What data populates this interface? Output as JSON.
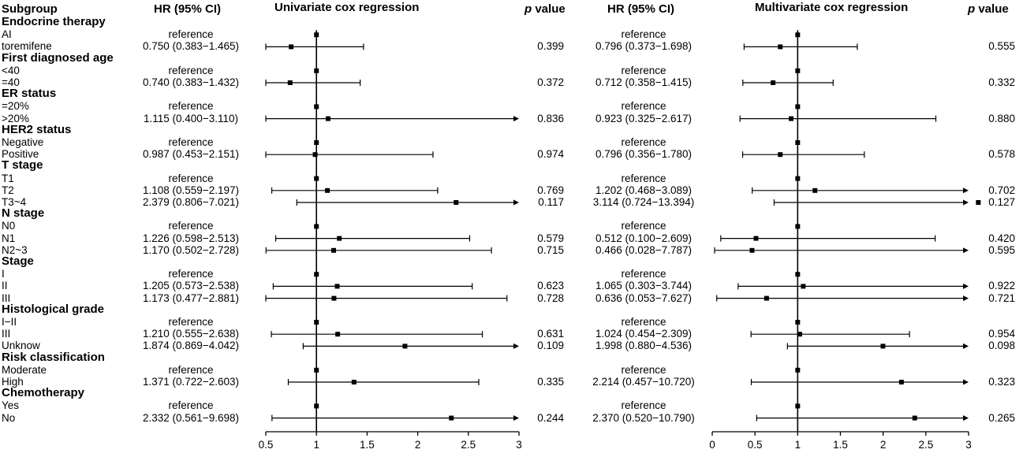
{
  "headers": {
    "subgroup": "Subgroup",
    "hr_uni": "HR (95% CI)",
    "title_uni": "Univariate cox regression",
    "p_uni_italic": "p",
    "p_uni_rest": " value",
    "hr_multi": "HR (95% CI)",
    "title_multi": "Multivariate cox regression",
    "p_multi_italic": "p",
    "p_multi_rest": " value"
  },
  "chart_data": [
    {
      "type": "forest",
      "title": "Univariate cox regression",
      "xlim": [
        0.5,
        3
      ],
      "xticks": [
        "0.5",
        "1",
        "1.5",
        "2",
        "2.5",
        "3"
      ],
      "reference_line": 1,
      "rows": [
        {
          "kind": "group",
          "label": "Endocrine therapy"
        },
        {
          "kind": "ref",
          "label": "AI",
          "hr_text": "reference",
          "p": ""
        },
        {
          "kind": "est",
          "label": "toremifene",
          "hr_text": "0.750 (0.383−1.465)",
          "hr": 0.75,
          "lo": 0.383,
          "hi": 1.465,
          "p": "0.399"
        },
        {
          "kind": "group",
          "label": "First diagnosed age"
        },
        {
          "kind": "ref",
          "label": "<40",
          "hr_text": "reference",
          "p": ""
        },
        {
          "kind": "est",
          "label": "=40",
          "hr_text": "0.740 (0.383−1.432)",
          "hr": 0.74,
          "lo": 0.383,
          "hi": 1.432,
          "p": "0.372"
        },
        {
          "kind": "group",
          "label": "ER status"
        },
        {
          "kind": "ref",
          "label": "=20%",
          "hr_text": "reference",
          "p": ""
        },
        {
          "kind": "est",
          "label": ">20%",
          "hr_text": "1.115 (0.400−3.110)",
          "hr": 1.115,
          "lo": 0.4,
          "hi": 3.11,
          "p": "0.836"
        },
        {
          "kind": "group",
          "label": "HER2 status"
        },
        {
          "kind": "ref",
          "label": "Negative",
          "hr_text": "reference",
          "p": ""
        },
        {
          "kind": "est",
          "label": "Positive",
          "hr_text": "0.987 (0.453−2.151)",
          "hr": 0.987,
          "lo": 0.453,
          "hi": 2.151,
          "p": "0.974"
        },
        {
          "kind": "group",
          "label": "T stage"
        },
        {
          "kind": "ref",
          "label": "T1",
          "hr_text": "reference",
          "p": ""
        },
        {
          "kind": "est",
          "label": "T2",
          "hr_text": "1.108 (0.559−2.197)",
          "hr": 1.108,
          "lo": 0.559,
          "hi": 2.197,
          "p": "0.769"
        },
        {
          "kind": "est",
          "label": "T3~4",
          "hr_text": "2.379 (0.806−7.021)",
          "hr": 2.379,
          "lo": 0.806,
          "hi": 7.021,
          "p": "0.117"
        },
        {
          "kind": "group",
          "label": "N stage"
        },
        {
          "kind": "ref",
          "label": "N0",
          "hr_text": "reference",
          "p": ""
        },
        {
          "kind": "est",
          "label": "N1",
          "hr_text": "1.226 (0.598−2.513)",
          "hr": 1.226,
          "lo": 0.598,
          "hi": 2.513,
          "p": "0.579"
        },
        {
          "kind": "est",
          "label": "N2~3",
          "hr_text": "1.170 (0.502−2.728)",
          "hr": 1.17,
          "lo": 0.502,
          "hi": 2.728,
          "p": "0.715"
        },
        {
          "kind": "group",
          "label": "Stage"
        },
        {
          "kind": "ref",
          "label": "I",
          "hr_text": "reference",
          "p": ""
        },
        {
          "kind": "est",
          "label": "II",
          "hr_text": "1.205 (0.573−2.538)",
          "hr": 1.205,
          "lo": 0.573,
          "hi": 2.538,
          "p": "0.623"
        },
        {
          "kind": "est",
          "label": "III",
          "hr_text": "1.173 (0.477−2.881)",
          "hr": 1.173,
          "lo": 0.477,
          "hi": 2.881,
          "p": "0.728"
        },
        {
          "kind": "group",
          "label": "Histological grade"
        },
        {
          "kind": "ref",
          "label": "I−II",
          "hr_text": "reference",
          "p": ""
        },
        {
          "kind": "est",
          "label": "III",
          "hr_text": "1.210 (0.555−2.638)",
          "hr": 1.21,
          "lo": 0.555,
          "hi": 2.638,
          "p": "0.631"
        },
        {
          "kind": "est",
          "label": "Unknow",
          "hr_text": "1.874 (0.869−4.042)",
          "hr": 1.874,
          "lo": 0.869,
          "hi": 4.042,
          "p": "0.109"
        },
        {
          "kind": "group",
          "label": "Risk classification"
        },
        {
          "kind": "ref",
          "label": "Moderate",
          "hr_text": "reference",
          "p": ""
        },
        {
          "kind": "est",
          "label": "High",
          "hr_text": "1.371 (0.722−2.603)",
          "hr": 1.371,
          "lo": 0.722,
          "hi": 2.603,
          "p": "0.335"
        },
        {
          "kind": "group",
          "label": "Chemotherapy"
        },
        {
          "kind": "ref",
          "label": "Yes",
          "hr_text": "reference",
          "p": ""
        },
        {
          "kind": "est",
          "label": "No",
          "hr_text": "2.332 (0.561−9.698)",
          "hr": 2.332,
          "lo": 0.561,
          "hi": 9.698,
          "p": "0.244"
        }
      ]
    },
    {
      "type": "forest",
      "title": "Multivariate cox regression",
      "xlim": [
        0,
        3
      ],
      "xticks": [
        "0",
        "0.5",
        "1",
        "1.5",
        "2",
        "2.5",
        "3"
      ],
      "reference_line": 1,
      "rows": [
        {
          "kind": "group",
          "label": ""
        },
        {
          "kind": "ref",
          "label": "",
          "hr_text": "reference",
          "p": ""
        },
        {
          "kind": "est",
          "label": "",
          "hr_text": "0.796 (0.373−1.698)",
          "hr": 0.796,
          "lo": 0.373,
          "hi": 1.698,
          "p": "0.555"
        },
        {
          "kind": "group",
          "label": ""
        },
        {
          "kind": "ref",
          "label": "",
          "hr_text": "reference",
          "p": ""
        },
        {
          "kind": "est",
          "label": "",
          "hr_text": "0.712 (0.358−1.415)",
          "hr": 0.712,
          "lo": 0.358,
          "hi": 1.415,
          "p": "0.332"
        },
        {
          "kind": "group",
          "label": ""
        },
        {
          "kind": "ref",
          "label": "",
          "hr_text": "reference",
          "p": ""
        },
        {
          "kind": "est",
          "label": "",
          "hr_text": "0.923 (0.325−2.617)",
          "hr": 0.923,
          "lo": 0.325,
          "hi": 2.617,
          "p": "0.880"
        },
        {
          "kind": "group",
          "label": ""
        },
        {
          "kind": "ref",
          "label": "",
          "hr_text": "reference",
          "p": ""
        },
        {
          "kind": "est",
          "label": "",
          "hr_text": "0.796 (0.356−1.780)",
          "hr": 0.796,
          "lo": 0.356,
          "hi": 1.78,
          "p": "0.578"
        },
        {
          "kind": "group",
          "label": ""
        },
        {
          "kind": "ref",
          "label": "",
          "hr_text": "reference",
          "p": ""
        },
        {
          "kind": "est",
          "label": "",
          "hr_text": "1.202 (0.468−3.089)",
          "hr": 1.202,
          "lo": 0.468,
          "hi": 3.089,
          "p": "0.702"
        },
        {
          "kind": "est",
          "label": "",
          "hr_text": "3.114 (0.724−13.394)",
          "hr": 3.114,
          "lo": 0.724,
          "hi": 13.394,
          "p": "0.127"
        },
        {
          "kind": "group",
          "label": ""
        },
        {
          "kind": "ref",
          "label": "",
          "hr_text": "reference",
          "p": ""
        },
        {
          "kind": "est",
          "label": "",
          "hr_text": "0.512 (0.100−2.609)",
          "hr": 0.512,
          "lo": 0.1,
          "hi": 2.609,
          "p": "0.420"
        },
        {
          "kind": "est",
          "label": "",
          "hr_text": "0.466 (0.028−7.787)",
          "hr": 0.466,
          "lo": 0.028,
          "hi": 7.787,
          "p": "0.595"
        },
        {
          "kind": "group",
          "label": ""
        },
        {
          "kind": "ref",
          "label": "",
          "hr_text": "reference",
          "p": ""
        },
        {
          "kind": "est",
          "label": "",
          "hr_text": "1.065 (0.303−3.744)",
          "hr": 1.065,
          "lo": 0.303,
          "hi": 3.744,
          "p": "0.922"
        },
        {
          "kind": "est",
          "label": "",
          "hr_text": "0.636 (0.053−7.627)",
          "hr": 0.636,
          "lo": 0.053,
          "hi": 7.627,
          "p": "0.721"
        },
        {
          "kind": "group",
          "label": ""
        },
        {
          "kind": "ref",
          "label": "",
          "hr_text": "reference",
          "p": ""
        },
        {
          "kind": "est",
          "label": "",
          "hr_text": "1.024 (0.454−2.309)",
          "hr": 1.024,
          "lo": 0.454,
          "hi": 2.309,
          "p": "0.954"
        },
        {
          "kind": "est",
          "label": "",
          "hr_text": "1.998 (0.880−4.536)",
          "hr": 1.998,
          "lo": 0.88,
          "hi": 4.536,
          "p": "0.098"
        },
        {
          "kind": "group",
          "label": ""
        },
        {
          "kind": "ref",
          "label": "",
          "hr_text": "reference",
          "p": ""
        },
        {
          "kind": "est",
          "label": "",
          "hr_text": "2.214 (0.457−10.720)",
          "hr": 2.214,
          "lo": 0.457,
          "hi": 10.72,
          "p": "0.323"
        },
        {
          "kind": "group",
          "label": ""
        },
        {
          "kind": "ref",
          "label": "",
          "hr_text": "reference",
          "p": ""
        },
        {
          "kind": "est",
          "label": "",
          "hr_text": "2.370 (0.520−10.790)",
          "hr": 2.37,
          "lo": 0.52,
          "hi": 10.79,
          "p": "0.265"
        }
      ]
    }
  ]
}
